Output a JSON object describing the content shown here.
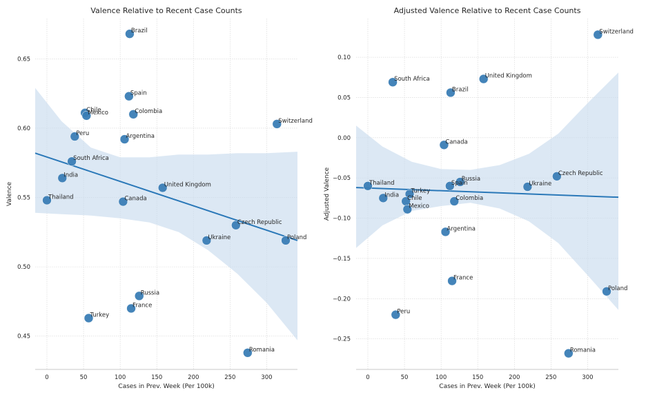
{
  "colors": {
    "point": "#3a7db5",
    "line": "#2a78b8",
    "band": "#c9dcee",
    "grid": "#d4d4d4",
    "spine": "#b8b8b8"
  },
  "chart_data": [
    {
      "type": "scatter",
      "title": "Valence Relative to Recent Case Counts",
      "xlabel": "Cases in Prev. Week (Per 100k)",
      "ylabel": "Valence",
      "xlim": [
        -16,
        342
      ],
      "ylim": [
        0.426,
        0.679
      ],
      "xticks": [
        0,
        50,
        100,
        150,
        200,
        250,
        300
      ],
      "yticks": [
        0.45,
        0.5,
        0.55,
        0.6,
        0.65
      ],
      "ytick_labels": [
        "0.45",
        "0.50",
        "0.55",
        "0.60",
        "0.65"
      ],
      "points": [
        {
          "label": "Brazil",
          "x": 113,
          "y": 0.668
        },
        {
          "label": "Spain",
          "x": 112,
          "y": 0.623
        },
        {
          "label": "Chile",
          "x": 52,
          "y": 0.611
        },
        {
          "label": "Mexico",
          "x": 54,
          "y": 0.609
        },
        {
          "label": "Colombia",
          "x": 118,
          "y": 0.61
        },
        {
          "label": "Switzerland",
          "x": 314,
          "y": 0.603
        },
        {
          "label": "Peru",
          "x": 38,
          "y": 0.594
        },
        {
          "label": "Argentina",
          "x": 106,
          "y": 0.592
        },
        {
          "label": "South Africa",
          "x": 34,
          "y": 0.576
        },
        {
          "label": "India",
          "x": 21,
          "y": 0.564
        },
        {
          "label": "United Kingdom",
          "x": 158,
          "y": 0.557
        },
        {
          "label": "Thailand",
          "x": 0,
          "y": 0.548
        },
        {
          "label": "Canada",
          "x": 104,
          "y": 0.547
        },
        {
          "label": "Czech Republic",
          "x": 258,
          "y": 0.53
        },
        {
          "label": "Ukraine",
          "x": 218,
          "y": 0.519
        },
        {
          "label": "Poland",
          "x": 326,
          "y": 0.519
        },
        {
          "label": "Russia",
          "x": 126,
          "y": 0.479
        },
        {
          "label": "France",
          "x": 115,
          "y": 0.47
        },
        {
          "label": "Turkey",
          "x": 57,
          "y": 0.463
        },
        {
          "label": "Romania",
          "x": 274,
          "y": 0.438
        }
      ],
      "regression": {
        "x": [
          -16,
          342
        ],
        "y": [
          0.582,
          0.519
        ]
      },
      "band": {
        "x": [
          -16,
          20,
          60,
          100,
          140,
          180,
          220,
          260,
          300,
          342
        ],
        "upper": [
          0.629,
          0.605,
          0.586,
          0.579,
          0.579,
          0.581,
          0.581,
          0.582,
          0.582,
          0.583
        ],
        "lower": [
          0.539,
          0.538,
          0.537,
          0.535,
          0.532,
          0.525,
          0.512,
          0.495,
          0.474,
          0.447
        ]
      }
    },
    {
      "type": "scatter",
      "title": "Adjusted Valence Relative to Recent Case Counts",
      "xlabel": "Cases in Prev. Week (Per 100k)",
      "ylabel": "Adjusted Valence",
      "xlim": [
        -16,
        342
      ],
      "ylim": [
        -0.288,
        0.148
      ],
      "xticks": [
        0,
        50,
        100,
        150,
        200,
        250,
        300
      ],
      "yticks": [
        -0.25,
        -0.2,
        -0.15,
        -0.1,
        -0.05,
        0.0,
        0.05,
        0.1
      ],
      "ytick_labels": [
        "−0.25",
        "−0.20",
        "−0.15",
        "−0.10",
        "−0.05",
        "0.00",
        "0.05",
        "0.10"
      ],
      "points": [
        {
          "label": "Switzerland",
          "x": 314,
          "y": 0.128
        },
        {
          "label": "United Kingdom",
          "x": 158,
          "y": 0.073
        },
        {
          "label": "South Africa",
          "x": 34,
          "y": 0.069
        },
        {
          "label": "Brazil",
          "x": 113,
          "y": 0.056
        },
        {
          "label": "Canada",
          "x": 104,
          "y": -0.009
        },
        {
          "label": "Czech Republic",
          "x": 258,
          "y": -0.048
        },
        {
          "label": "Russia",
          "x": 126,
          "y": -0.055
        },
        {
          "label": "Spain",
          "x": 112,
          "y": -0.06
        },
        {
          "label": "Thailand",
          "x": 0,
          "y": -0.06
        },
        {
          "label": "Ukraine",
          "x": 218,
          "y": -0.061
        },
        {
          "label": "Turkey",
          "x": 57,
          "y": -0.07
        },
        {
          "label": "India",
          "x": 21,
          "y": -0.075
        },
        {
          "label": "Chile",
          "x": 52,
          "y": -0.079
        },
        {
          "label": "Colombia",
          "x": 118,
          "y": -0.079
        },
        {
          "label": "Mexico",
          "x": 54,
          "y": -0.089
        },
        {
          "label": "Argentina",
          "x": 106,
          "y": -0.117
        },
        {
          "label": "France",
          "x": 115,
          "y": -0.178
        },
        {
          "label": "Poland",
          "x": 326,
          "y": -0.191
        },
        {
          "label": "Peru",
          "x": 38,
          "y": -0.22
        },
        {
          "label": "Romania",
          "x": 274,
          "y": -0.268
        }
      ],
      "regression": {
        "x": [
          -16,
          342
        ],
        "y": [
          -0.062,
          -0.074
        ]
      },
      "band": {
        "x": [
          -16,
          20,
          60,
          100,
          140,
          180,
          220,
          260,
          300,
          342
        ],
        "upper": [
          0.015,
          -0.011,
          -0.03,
          -0.039,
          -0.04,
          -0.034,
          -0.02,
          0.005,
          0.043,
          0.081
        ],
        "lower": [
          -0.137,
          -0.109,
          -0.091,
          -0.085,
          -0.081,
          -0.088,
          -0.104,
          -0.131,
          -0.171,
          -0.214
        ]
      }
    }
  ]
}
